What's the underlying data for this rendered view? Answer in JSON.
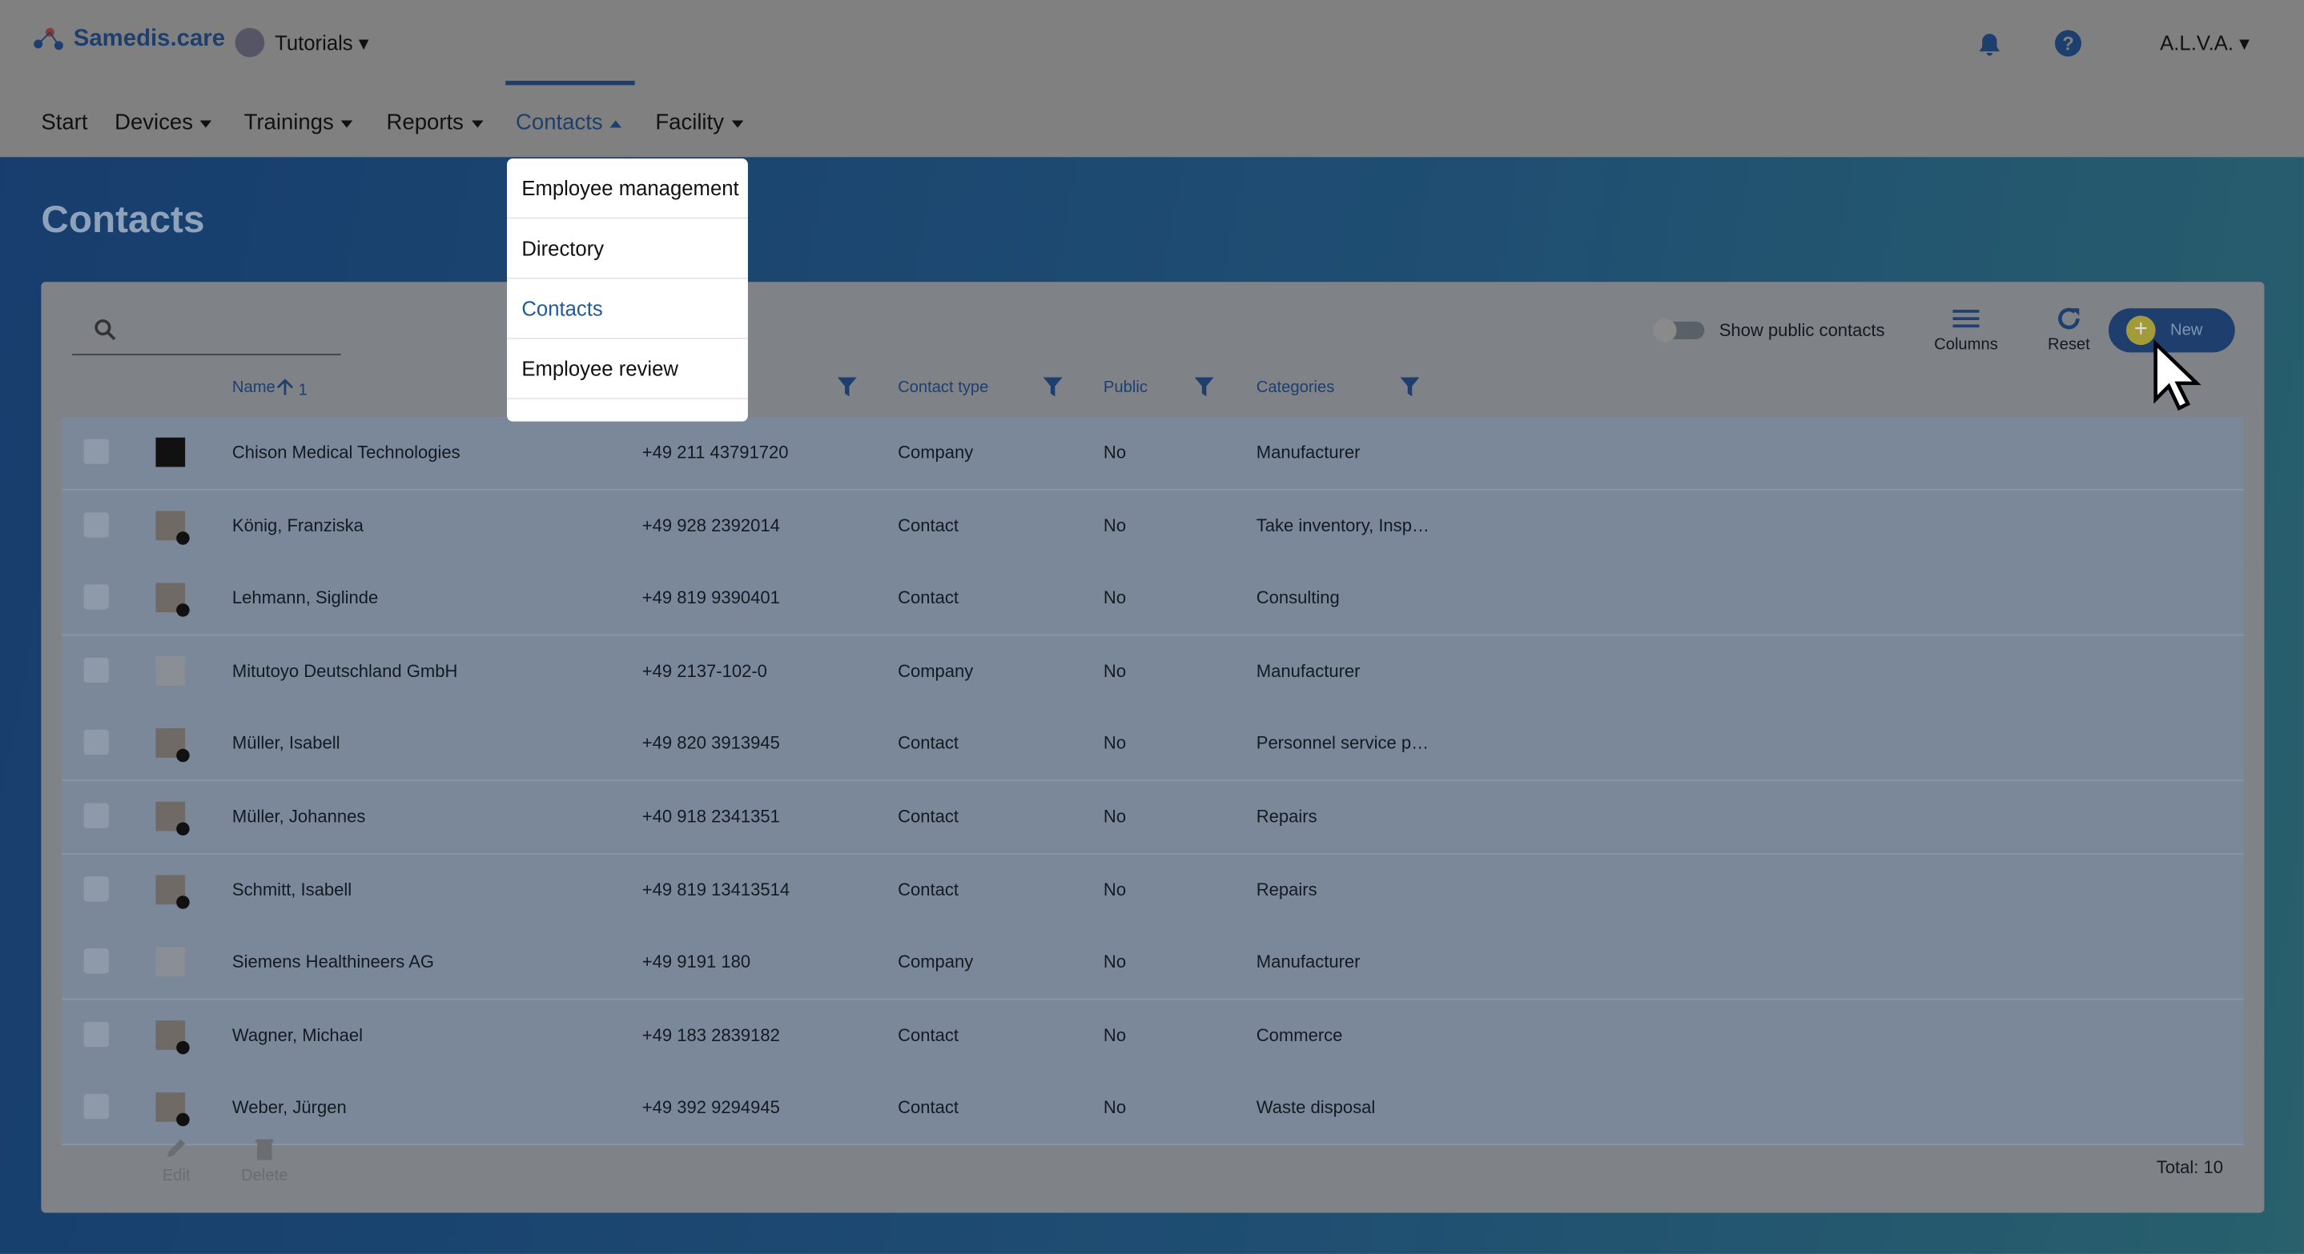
{
  "header": {
    "logo": "Samedis.care",
    "tenant": "Tutorials",
    "user": "A.L.V.A."
  },
  "nav": [
    "Start",
    "Devices",
    "Trainings",
    "Reports",
    "Contacts",
    "Facility"
  ],
  "dropdown": [
    "Employee management",
    "Directory",
    "Contacts",
    "Employee review"
  ],
  "page": {
    "title": "Contacts"
  },
  "toolbar": {
    "toggle": "Show public contacts",
    "columns": "Columns",
    "reset": "Reset",
    "new": "New"
  },
  "table": {
    "columns": [
      "Name",
      "Contact type",
      "Public",
      "Categories"
    ],
    "sort_index": "1",
    "rows": [
      [
        "Chison Medical Technologies",
        "+49 211 43791720",
        "Company",
        "No",
        "Manufacturer"
      ],
      [
        "König, Franziska",
        "+49 928 2392014",
        "Contact",
        "No",
        "Take inventory, Insp…"
      ],
      [
        "Lehmann, Siglinde",
        "+49 819 9390401",
        "Contact",
        "No",
        "Consulting"
      ],
      [
        "Mitutoyo Deutschland GmbH",
        "+49 2137-102-0",
        "Company",
        "No",
        "Manufacturer"
      ],
      [
        "Müller, Isabell",
        "+49 820 3913945",
        "Contact",
        "No",
        "Personnel service p…"
      ],
      [
        "Müller, Johannes",
        "+40 918 2341351",
        "Contact",
        "No",
        "Repairs"
      ],
      [
        "Schmitt, Isabell",
        "+49 819 13413514",
        "Contact",
        "No",
        "Repairs"
      ],
      [
        "Siemens Healthineers AG",
        "+49 9191 180",
        "Company",
        "No",
        "Manufacturer"
      ],
      [
        "Wagner, Michael",
        "+49 183 2839182",
        "Contact",
        "No",
        "Commerce"
      ],
      [
        "Weber, Jürgen",
        "+49 392 9294945",
        "Contact",
        "No",
        "Waste disposal"
      ]
    ]
  },
  "footer": {
    "edit": "Edit",
    "delete": "Delete",
    "total": "Total: 10"
  }
}
